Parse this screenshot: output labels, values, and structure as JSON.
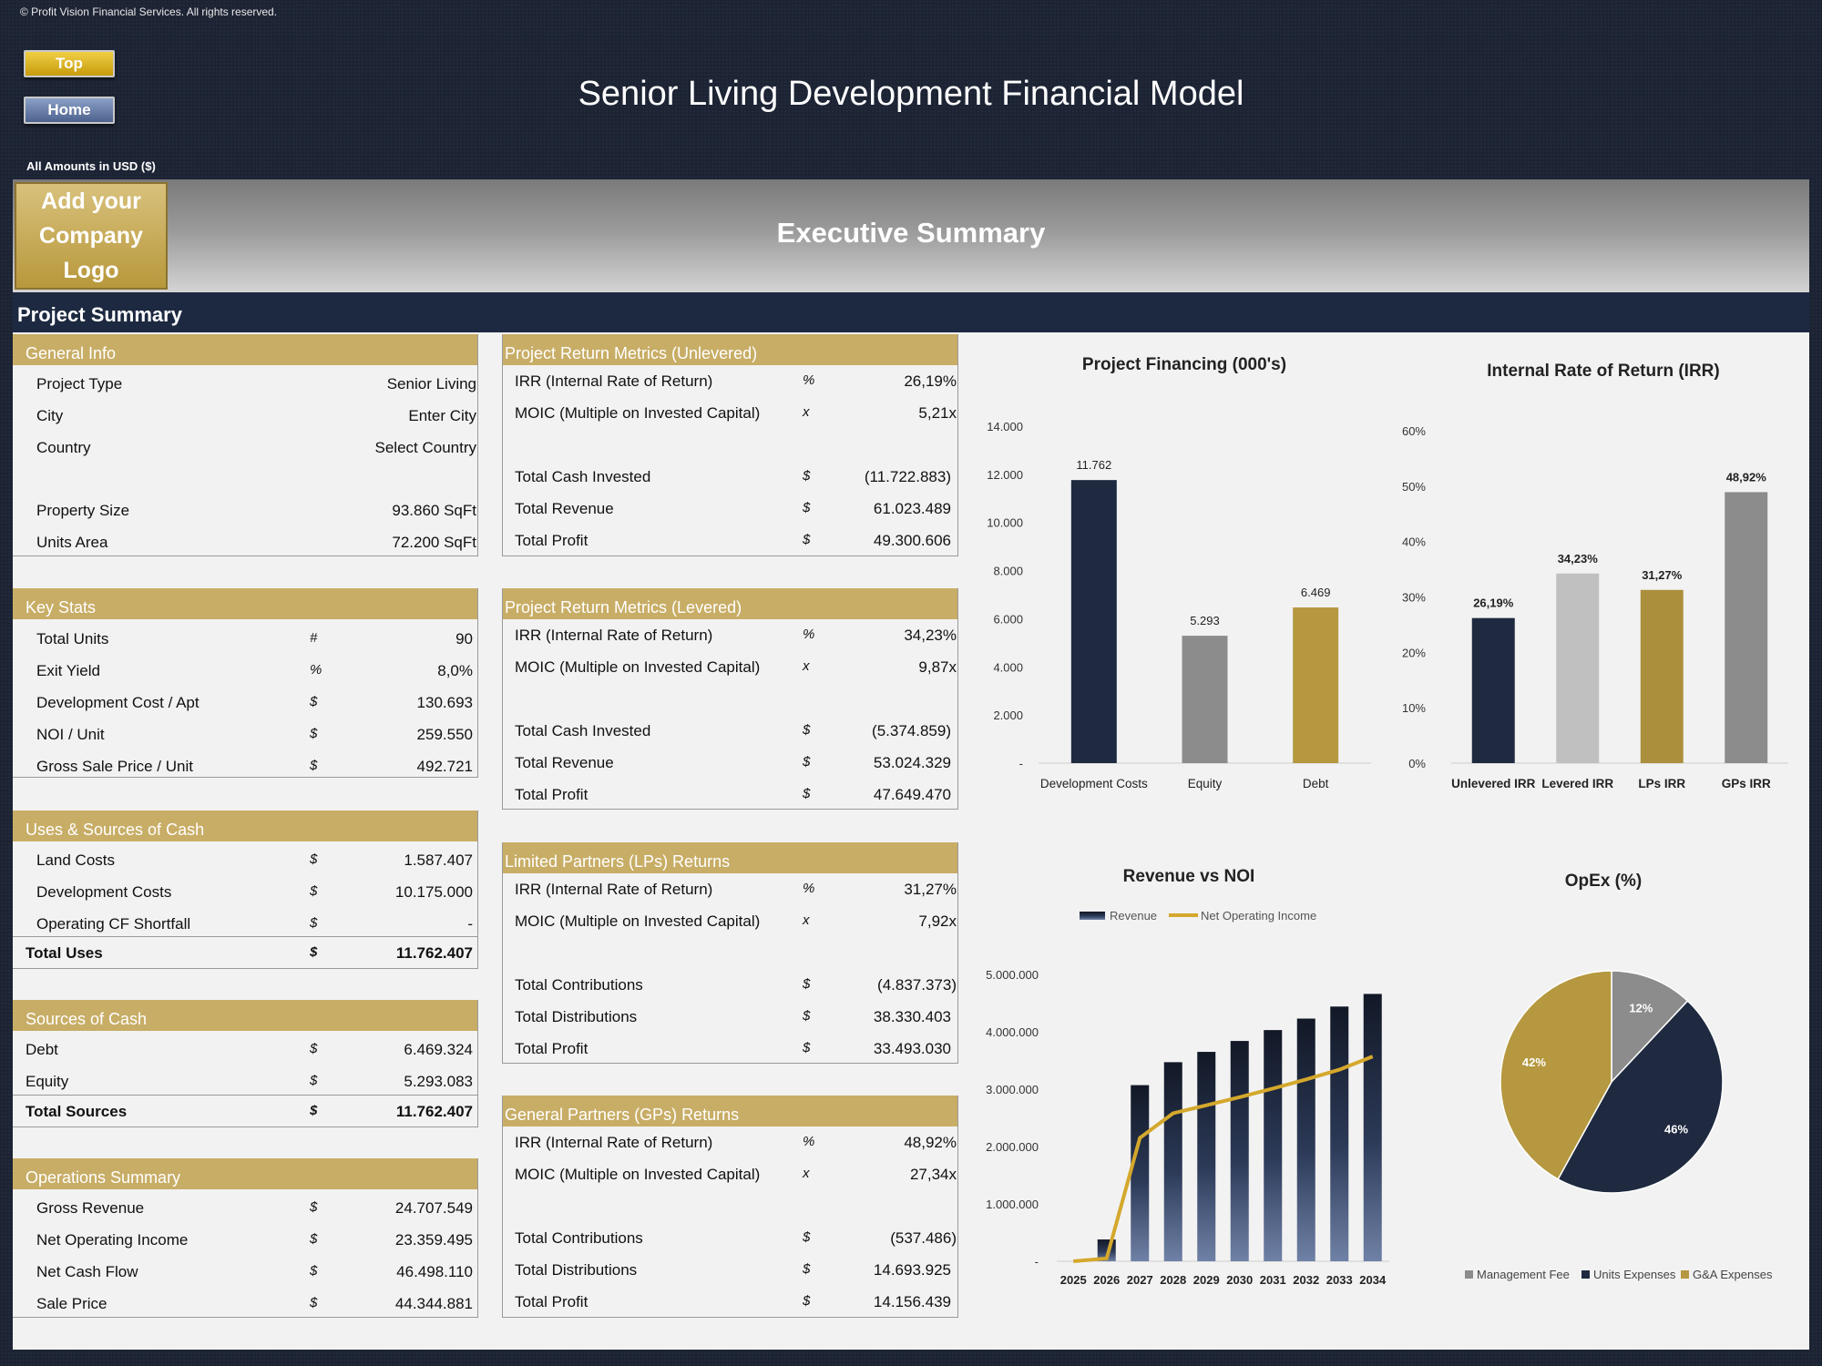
{
  "copyright": "© Profit Vision Financial Services. All rights reserved.",
  "nav": {
    "top": "Top",
    "home": "Home"
  },
  "title": "Senior Living Development Financial Model",
  "amounts_label": "All Amounts in  USD ($)",
  "logo_text": "Add your Company Logo",
  "exec_title": "Executive Summary",
  "project_summary": "Project Summary",
  "general_info": {
    "title": "General Info",
    "rows": [
      {
        "label": "Project Type",
        "value": "Senior Living"
      },
      {
        "label": "City",
        "value": "Enter City"
      },
      {
        "label": "Country",
        "value": "Select Country"
      },
      {
        "label": "Property Size",
        "value": "93.860 SqFt"
      },
      {
        "label": "Units Area",
        "value": "72.200 SqFt"
      }
    ]
  },
  "key_stats": {
    "title": "Key Stats",
    "rows": [
      {
        "label": "Total Units",
        "sym": "#",
        "value": "90"
      },
      {
        "label": "Exit Yield",
        "sym": "%",
        "value": "8,0%"
      },
      {
        "label": "Development Cost / Apt",
        "sym": "$",
        "value": "130.693"
      },
      {
        "label": "NOI / Unit",
        "sym": "$",
        "value": "259.550"
      },
      {
        "label": "Gross Sale Price / Unit",
        "sym": "$",
        "value": "492.721"
      }
    ]
  },
  "uses": {
    "title": "Uses & Sources of Cash",
    "rows": [
      {
        "label": "Land Costs",
        "sym": "$",
        "value": "1.587.407"
      },
      {
        "label": "Development Costs",
        "sym": "$",
        "value": "10.175.000"
      },
      {
        "label": "Operating CF Shortfall",
        "sym": "$",
        "value": "-"
      }
    ],
    "total": {
      "label": "Total Uses",
      "sym": "$",
      "value": "11.762.407"
    }
  },
  "sources": {
    "title": "Sources of Cash",
    "rows": [
      {
        "label": "Debt",
        "sym": "$",
        "value": "6.469.324"
      },
      {
        "label": "Equity",
        "sym": "$",
        "value": "5.293.083"
      }
    ],
    "total": {
      "label": "Total Sources",
      "sym": "$",
      "value": "11.762.407"
    }
  },
  "operations": {
    "title": "Operations Summary",
    "rows": [
      {
        "label": "Gross Revenue",
        "sym": "$",
        "value": "24.707.549"
      },
      {
        "label": "Net Operating Income",
        "sym": "$",
        "value": "23.359.495"
      },
      {
        "label": "Net Cash Flow",
        "sym": "$",
        "value": "46.498.110"
      },
      {
        "label": "Sale Price",
        "sym": "$",
        "value": "44.344.881"
      }
    ]
  },
  "unlevered": {
    "title": "Project Return Metrics (Unlevered)",
    "rows": [
      {
        "label": "IRR (Internal Rate of Return)",
        "sym": "%",
        "value": "26,19%"
      },
      {
        "label": "MOIC (Multiple on Invested Capital)",
        "sym": "x",
        "value": "5,21x"
      },
      {
        "label": "Total Cash Invested",
        "sym": "$",
        "value": "(11.722.883)"
      },
      {
        "label": "Total Revenue",
        "sym": "$",
        "value": "61.023.489"
      },
      {
        "label": "Total Profit",
        "sym": "$",
        "value": "49.300.606"
      }
    ]
  },
  "levered": {
    "title": "Project Return Metrics (Levered)",
    "rows": [
      {
        "label": "IRR (Internal Rate of Return)",
        "sym": "%",
        "value": "34,23%"
      },
      {
        "label": "MOIC (Multiple on Invested Capital)",
        "sym": "x",
        "value": "9,87x"
      },
      {
        "label": "Total Cash Invested",
        "sym": "$",
        "value": "(5.374.859)"
      },
      {
        "label": "Total Revenue",
        "sym": "$",
        "value": "53.024.329"
      },
      {
        "label": "Total Profit",
        "sym": "$",
        "value": "47.649.470"
      }
    ]
  },
  "lps": {
    "title": "Limited Partners (LPs) Returns",
    "rows": [
      {
        "label": "IRR (Internal Rate of Return)",
        "sym": "%",
        "value": "31,27%"
      },
      {
        "label": "MOIC (Multiple on Invested Capital)",
        "sym": "x",
        "value": "7,92x"
      },
      {
        "label": "Total Contributions",
        "sym": "$",
        "value": "(4.837.373)"
      },
      {
        "label": "Total Distributions",
        "sym": "$",
        "value": "38.330.403"
      },
      {
        "label": "Total Profit",
        "sym": "$",
        "value": "33.493.030"
      }
    ]
  },
  "gps": {
    "title": "General Partners (GPs) Returns",
    "rows": [
      {
        "label": "IRR (Internal Rate of Return)",
        "sym": "%",
        "value": "48,92%"
      },
      {
        "label": "MOIC (Multiple on Invested Capital)",
        "sym": "x",
        "value": "27,34x"
      },
      {
        "label": "Total Contributions",
        "sym": "$",
        "value": "(537.486)"
      },
      {
        "label": "Total Distributions",
        "sym": "$",
        "value": "14.693.925"
      },
      {
        "label": "Total Profit",
        "sym": "$",
        "value": "14.156.439"
      }
    ]
  },
  "colors": {
    "navy": "#1f2a40",
    "gold": "#c8ad66",
    "gray": "#8c8c8c",
    "lightgray": "#c0c0c0",
    "darkgold": "#ac8f3d"
  },
  "chart_data": [
    {
      "type": "bar",
      "title": "Project Financing (000's)",
      "categories": [
        "Development Costs",
        "Equity",
        "Debt"
      ],
      "values": [
        11762,
        5293,
        6469
      ],
      "labels": [
        "11.762",
        "5.293",
        "6.469"
      ],
      "ylim": [
        0,
        14000
      ],
      "yticks": [
        "-",
        "2.000",
        "4.000",
        "6.000",
        "8.000",
        "10.000",
        "12.000",
        "14.000"
      ],
      "bar_colors": [
        "#1f2a40",
        "#8c8c8c",
        "#b5983f"
      ]
    },
    {
      "type": "bar",
      "title": "Internal Rate of Return (IRR)",
      "categories": [
        "Unlevered IRR",
        "Levered IRR",
        "LPs IRR",
        "GPs IRR"
      ],
      "values": [
        26.19,
        34.23,
        31.27,
        48.92
      ],
      "labels": [
        "26,19%",
        "34,23%",
        "31,27%",
        "48,92%"
      ],
      "ylim": [
        0,
        60
      ],
      "yticks": [
        "0%",
        "10%",
        "20%",
        "30%",
        "40%",
        "50%",
        "60%"
      ],
      "bar_colors": [
        "#1f2a40",
        "#c0c0c0",
        "#ac8f3d",
        "#8c8c8c"
      ]
    },
    {
      "type": "bar",
      "title": "Revenue vs NOI",
      "categories": [
        "2025",
        "2026",
        "2027",
        "2028",
        "2029",
        "2030",
        "2031",
        "2032",
        "2033",
        "2034"
      ],
      "series": [
        {
          "name": "Revenue",
          "type": "bar",
          "values": [
            0,
            380000,
            3070000,
            3470000,
            3650000,
            3840000,
            4030000,
            4230000,
            4440000,
            4660000
          ]
        },
        {
          "name": "Net Operating Income",
          "type": "line",
          "values": [
            0,
            50000,
            2150000,
            2580000,
            2720000,
            2860000,
            3010000,
            3170000,
            3340000,
            3570000
          ]
        }
      ],
      "ylim": [
        0,
        5000000
      ],
      "yticks": [
        "-",
        "1.000.000",
        "2.000.000",
        "3.000.000",
        "4.000.000",
        "5.000.000"
      ]
    },
    {
      "type": "pie",
      "title": "OpEx (%)",
      "slices": [
        {
          "name": "Management Fee",
          "value": 12,
          "label": "12%",
          "color": "#8c8c8c"
        },
        {
          "name": "Units Expenses",
          "value": 46,
          "label": "46%",
          "color": "#1f2a40"
        },
        {
          "name": "G&A Expenses",
          "value": 42,
          "label": "42%",
          "color": "#b5983f"
        }
      ]
    }
  ]
}
